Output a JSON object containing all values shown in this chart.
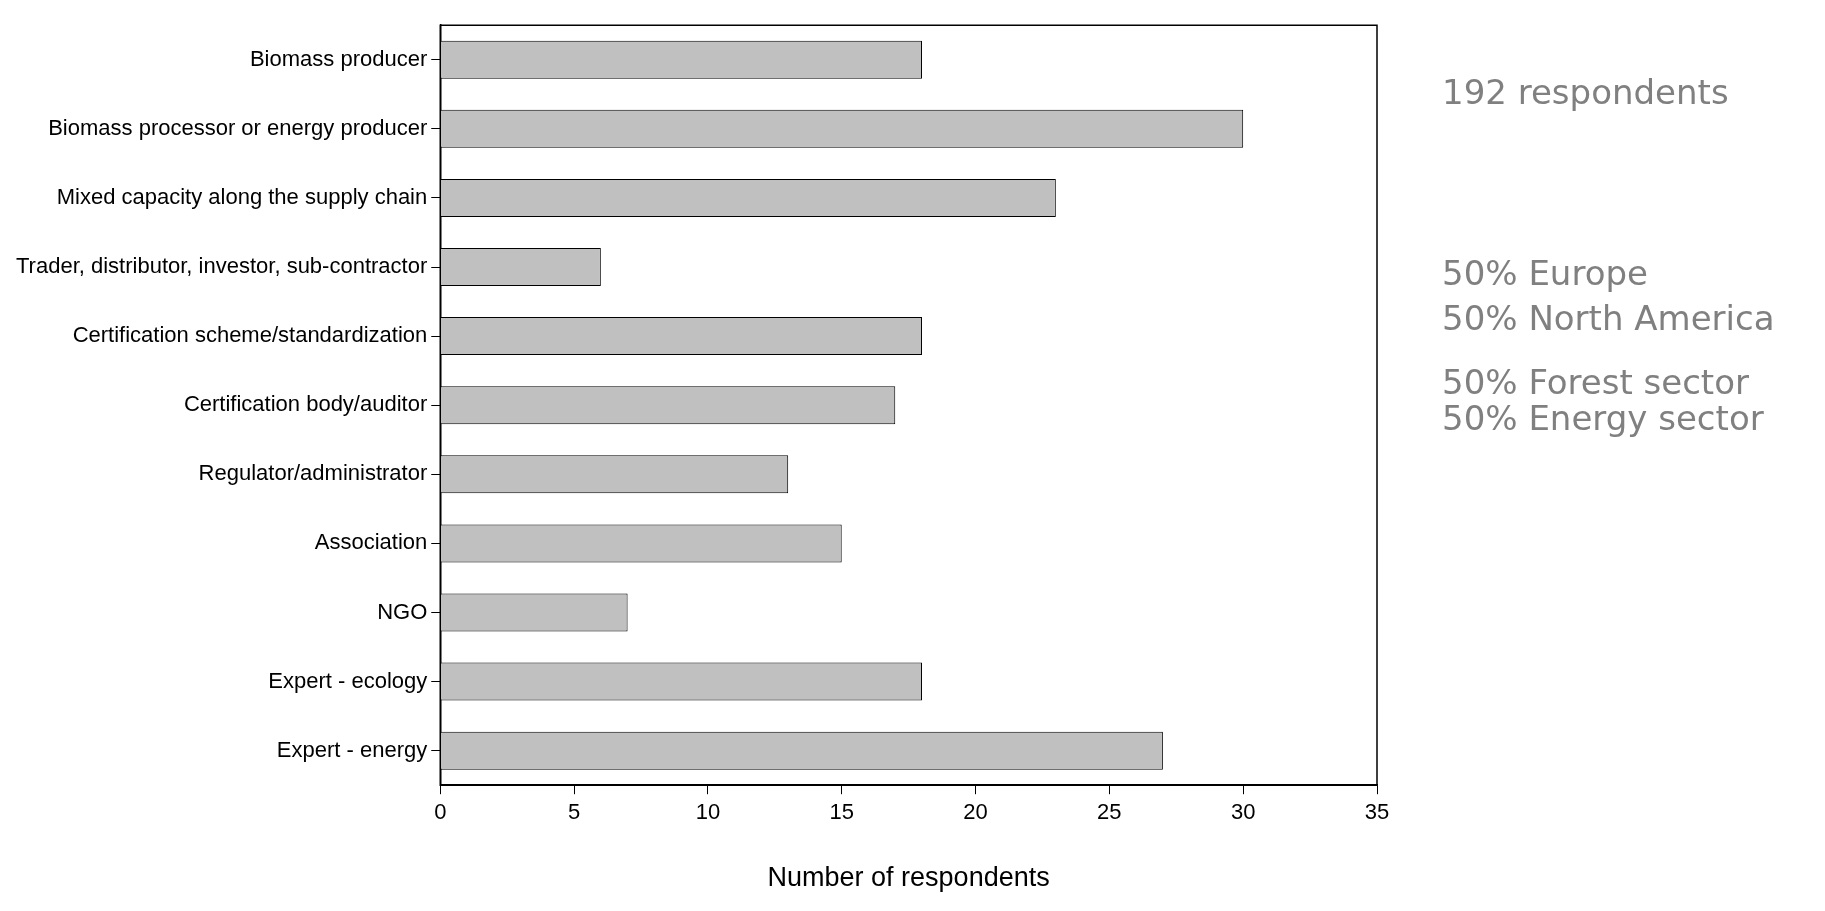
{
  "chart_data": {
    "type": "bar",
    "orientation": "horizontal",
    "categories": [
      "Biomass producer",
      "Biomass processor or energy producer",
      "Mixed capacity along the supply chain",
      "Trader, distributor, investor, sub-contractor",
      "Certification scheme/standardization",
      "Certification body/auditor",
      "Regulator/administrator",
      "Association",
      "NGO",
      "Expert - ecology",
      "Expert - energy"
    ],
    "values": [
      18,
      30,
      23,
      6,
      18,
      17,
      13,
      15,
      7,
      18,
      27
    ],
    "color": "#c0c0c0",
    "xlabel": "Number of respondents",
    "xlim": [
      0,
      35
    ],
    "xticks": [
      0,
      5,
      10,
      15,
      20,
      25,
      30,
      35
    ],
    "grid": false,
    "legend": false,
    "annotations": [
      "192 respondents",
      "50% Europe",
      "50% North America",
      "50% Forest sector",
      "50% Energy sector"
    ]
  }
}
